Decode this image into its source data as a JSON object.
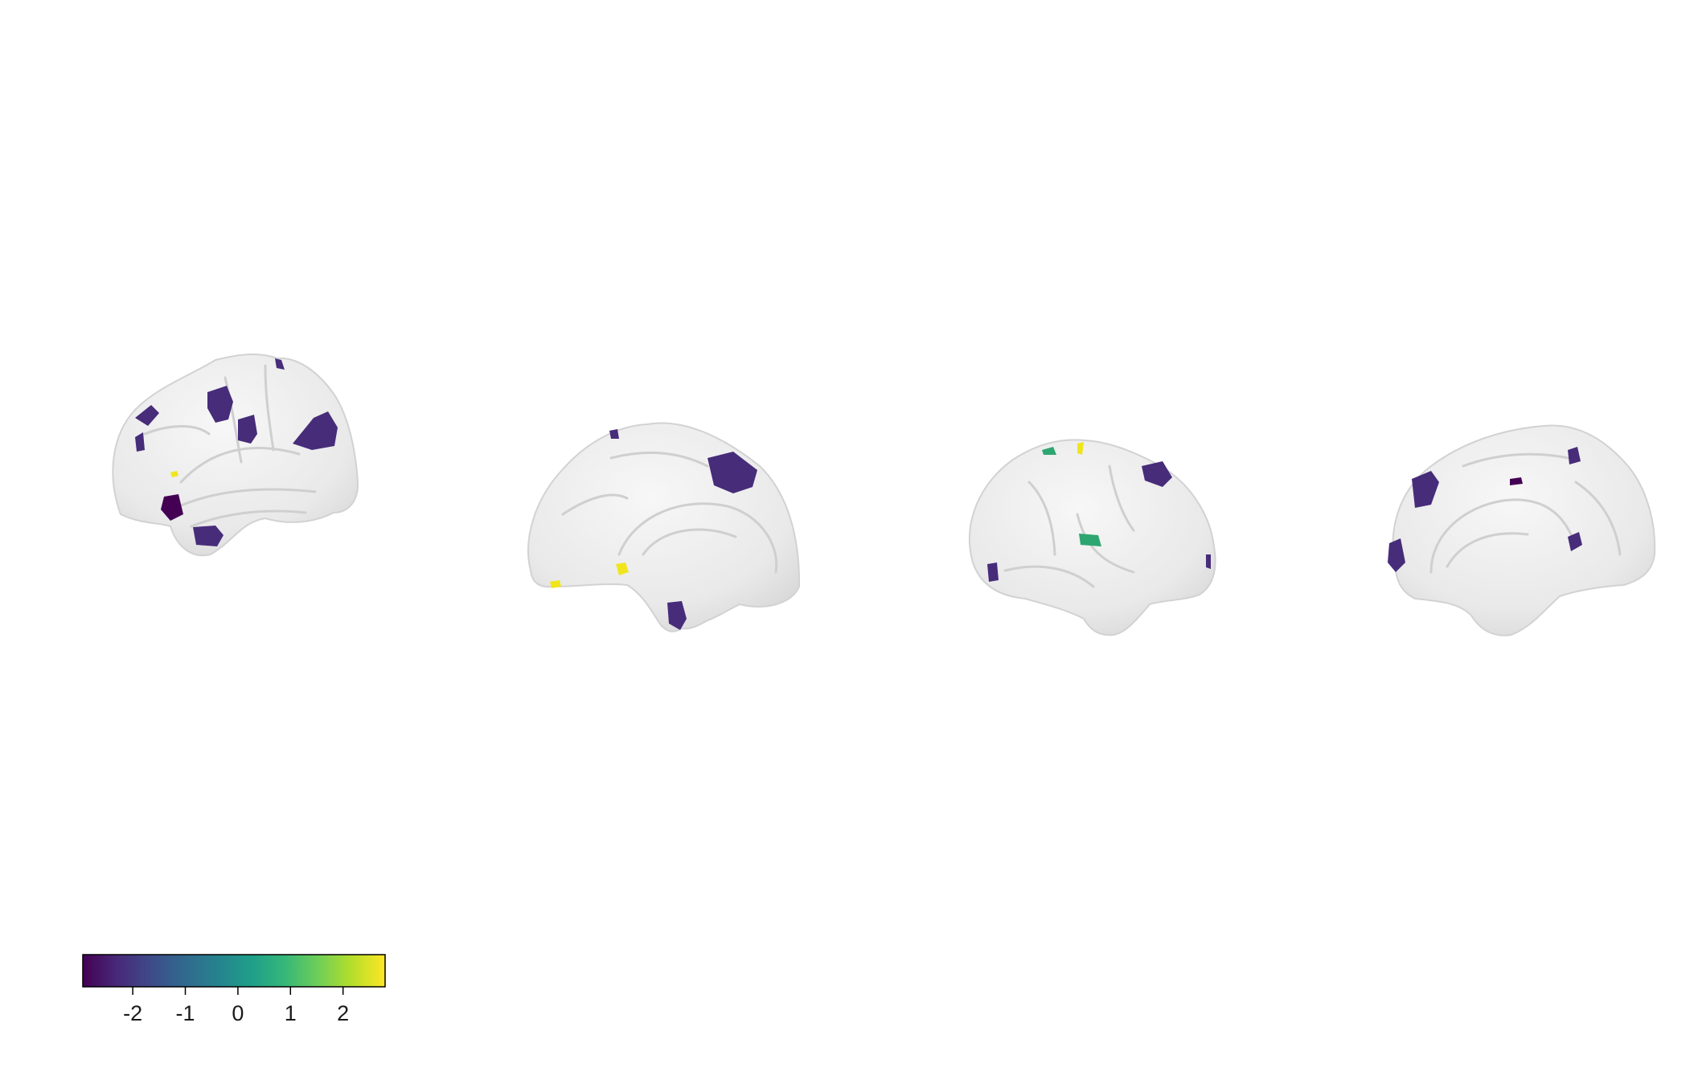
{
  "figure": {
    "views": [
      {
        "name": "left-hemisphere-lateral"
      },
      {
        "name": "left-hemisphere-medial"
      },
      {
        "name": "right-hemisphere-lateral"
      },
      {
        "name": "right-hemisphere-medial"
      }
    ],
    "surface_color": "#eaeaea",
    "colorbar": {
      "colormap": "viridis",
      "stops": [
        "#440154",
        "#482878",
        "#3e4a89",
        "#31688e",
        "#26828e",
        "#1f9e89",
        "#35b779",
        "#6ece58",
        "#b5de2b",
        "#fde725"
      ],
      "range": [
        -2.95,
        2.8
      ],
      "ticks": [
        {
          "value": -2,
          "label": "-2"
        },
        {
          "value": -1,
          "label": "-1"
        },
        {
          "value": 0,
          "label": "0"
        },
        {
          "value": 1,
          "label": "1"
        },
        {
          "value": 2,
          "label": "2"
        }
      ]
    },
    "regions": {
      "negative_color": "#472c7a",
      "negative_color_dark": "#440154",
      "positive_color": "#f0e51c",
      "mid_color": "#2ea672"
    }
  }
}
